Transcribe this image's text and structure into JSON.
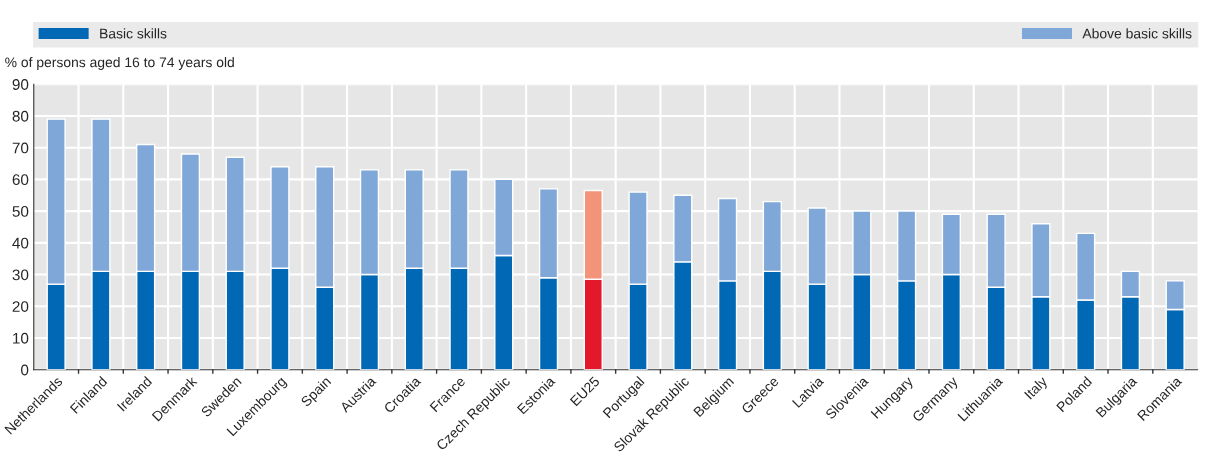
{
  "chart_data": {
    "type": "bar",
    "stacked": true,
    "ylabel": "% of persons aged 16 to 74 years old",
    "categories": [
      "Netherlands",
      "Finland",
      "Ireland",
      "Denmark",
      "Sweden",
      "Luxembourg",
      "Spain",
      "Austria",
      "Croatia",
      "France",
      "Czech Republic",
      "Estonia",
      "EU25",
      "Portugal",
      "Slovak Republic",
      "Belgium",
      "Greece",
      "Latvia",
      "Slovenia",
      "Hungary",
      "Germany",
      "Lithuania",
      "Italy",
      "Poland",
      "Bulgaria",
      "Romania"
    ],
    "series": [
      {
        "name": "Basic skills",
        "color": "#0068b5",
        "colors": [
          "#0068b5",
          "#0068b5",
          "#0068b5",
          "#0068b5",
          "#0068b5",
          "#0068b5",
          "#0068b5",
          "#0068b5",
          "#0068b5",
          "#0068b5",
          "#0068b5",
          "#0068b5",
          "#e3192b",
          "#0068b5",
          "#0068b5",
          "#0068b5",
          "#0068b5",
          "#0068b5",
          "#0068b5",
          "#0068b5",
          "#0068b5",
          "#0068b5",
          "#0068b5",
          "#0068b5",
          "#0068b5",
          "#0068b5"
        ],
        "values": [
          27,
          31,
          31,
          31,
          31,
          32,
          26,
          30,
          32,
          32,
          36,
          29,
          28.5,
          27,
          34,
          28,
          31,
          27,
          30,
          28,
          30,
          26,
          23,
          22,
          23,
          19
        ]
      },
      {
        "name": "Above basic skills",
        "color": "#7fa8d9",
        "colors": [
          "#7fa8d9",
          "#7fa8d9",
          "#7fa8d9",
          "#7fa8d9",
          "#7fa8d9",
          "#7fa8d9",
          "#7fa8d9",
          "#7fa8d9",
          "#7fa8d9",
          "#7fa8d9",
          "#7fa8d9",
          "#7fa8d9",
          "#f3937a",
          "#7fa8d9",
          "#7fa8d9",
          "#7fa8d9",
          "#7fa8d9",
          "#7fa8d9",
          "#7fa8d9",
          "#7fa8d9",
          "#7fa8d9",
          "#7fa8d9",
          "#7fa8d9",
          "#7fa8d9",
          "#7fa8d9",
          "#7fa8d9"
        ],
        "values": [
          52,
          48,
          40,
          37,
          36,
          32,
          38,
          33,
          31,
          31,
          24,
          28,
          28,
          29,
          21,
          26,
          22,
          24,
          20,
          22,
          19,
          23,
          23,
          21,
          8,
          9
        ]
      }
    ],
    "ylim": [
      0,
      90
    ],
    "yticks": [
      0,
      10,
      20,
      30,
      40,
      50,
      60,
      70,
      80,
      90
    ],
    "grid": true,
    "legend": "top"
  }
}
